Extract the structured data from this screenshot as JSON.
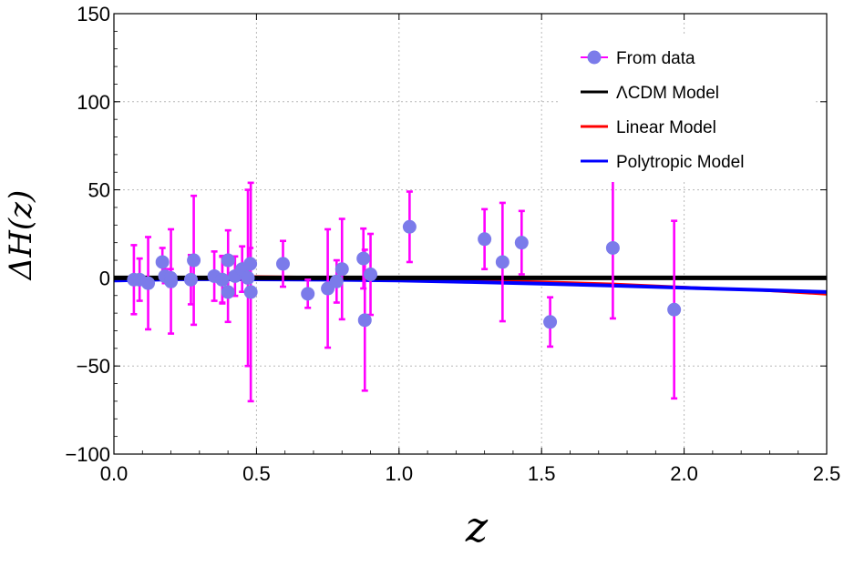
{
  "chart_data": {
    "type": "scatter",
    "title": "",
    "xlabel": "z",
    "ylabel": "ΔH(z)",
    "xlim": [
      0.0,
      2.5
    ],
    "ylim": [
      -100,
      150
    ],
    "xticks": [
      "0.0",
      "0.5",
      "1.0",
      "1.5",
      "2.0",
      "2.5"
    ],
    "yticks": [
      "−100",
      "−50",
      "0",
      "50",
      "100",
      "150"
    ],
    "xtick_values": [
      0.0,
      0.5,
      1.0,
      1.5,
      2.0,
      2.5
    ],
    "ytick_values": [
      -100,
      -50,
      0,
      50,
      100,
      150
    ],
    "grid": true,
    "legend_position": "top-right",
    "colors": {
      "data": "#7b7bea",
      "errorbar": "#ff00ff",
      "lcdm": "#000000",
      "linear": "#ff0000",
      "polytropic": "#0000ff"
    },
    "series": [
      {
        "name": "From data",
        "kind": "errorbar",
        "points": [
          {
            "x": 0.07,
            "y": -1,
            "err": 19.6
          },
          {
            "x": 0.09,
            "y": -1,
            "err": 12
          },
          {
            "x": 0.12,
            "y": -3,
            "err": 26.2
          },
          {
            "x": 0.17,
            "y": 9,
            "err": 8
          },
          {
            "x": 0.179,
            "y": 1,
            "err": 4
          },
          {
            "x": 0.199,
            "y": 0,
            "err": 5
          },
          {
            "x": 0.2,
            "y": -2,
            "err": 29.6
          },
          {
            "x": 0.27,
            "y": -1,
            "err": 14
          },
          {
            "x": 0.28,
            "y": 10,
            "err": 36.6
          },
          {
            "x": 0.352,
            "y": 1,
            "err": 14
          },
          {
            "x": 0.38,
            "y": -1,
            "err": 13
          },
          {
            "x": 0.3802,
            "y": -1,
            "err": 13.5
          },
          {
            "x": 0.4,
            "y": -8,
            "err": 17
          },
          {
            "x": 0.4004,
            "y": 10,
            "err": 17
          },
          {
            "x": 0.4247,
            "y": 1,
            "err": 11.2
          },
          {
            "x": 0.4497,
            "y": 5,
            "err": 12.9
          },
          {
            "x": 0.47,
            "y": 0,
            "err": 50
          },
          {
            "x": 0.4783,
            "y": 8,
            "err": 9
          },
          {
            "x": 0.48,
            "y": -8,
            "err": 62
          },
          {
            "x": 0.593,
            "y": 8,
            "err": 13
          },
          {
            "x": 0.68,
            "y": -9,
            "err": 8
          },
          {
            "x": 0.75,
            "y": -6,
            "err": 33.6
          },
          {
            "x": 0.781,
            "y": -2,
            "err": 12
          },
          {
            "x": 0.8,
            "y": 5,
            "err": 28.5
          },
          {
            "x": 0.875,
            "y": 11,
            "err": 17
          },
          {
            "x": 0.88,
            "y": -24,
            "err": 40
          },
          {
            "x": 0.9,
            "y": 2,
            "err": 23
          },
          {
            "x": 1.037,
            "y": 29,
            "err": 20
          },
          {
            "x": 1.3,
            "y": 22,
            "err": 17
          },
          {
            "x": 1.363,
            "y": 9,
            "err": 33.6
          },
          {
            "x": 1.43,
            "y": 20,
            "err": 18
          },
          {
            "x": 1.53,
            "y": -25,
            "err": 14
          },
          {
            "x": 1.75,
            "y": 17,
            "err": 40
          },
          {
            "x": 1.965,
            "y": -18,
            "err": 50.4
          }
        ]
      },
      {
        "name": "ΛCDM Model",
        "kind": "line",
        "x": [
          0.0,
          2.5
        ],
        "y": [
          0,
          0
        ]
      },
      {
        "name": "Linear Model",
        "kind": "line",
        "x": [
          0.0,
          0.25,
          0.5,
          0.75,
          1.0,
          1.25,
          1.5,
          1.75,
          2.0,
          2.25,
          2.5
        ],
        "y": [
          -1.5,
          0.5,
          1.0,
          0.5,
          -0.5,
          -1.3,
          -2.0,
          -3.2,
          -5.0,
          -7.0,
          -9.5
        ]
      },
      {
        "name": "Polytropic Model",
        "kind": "line",
        "x": [
          0.0,
          0.25,
          0.5,
          0.75,
          1.0,
          1.25,
          1.5,
          1.75,
          2.0,
          2.25,
          2.5
        ],
        "y": [
          -1.5,
          -0.7,
          -0.8,
          -1.0,
          -1.5,
          -2.3,
          -3.3,
          -4.4,
          -5.6,
          -6.8,
          -8.0
        ]
      }
    ]
  }
}
